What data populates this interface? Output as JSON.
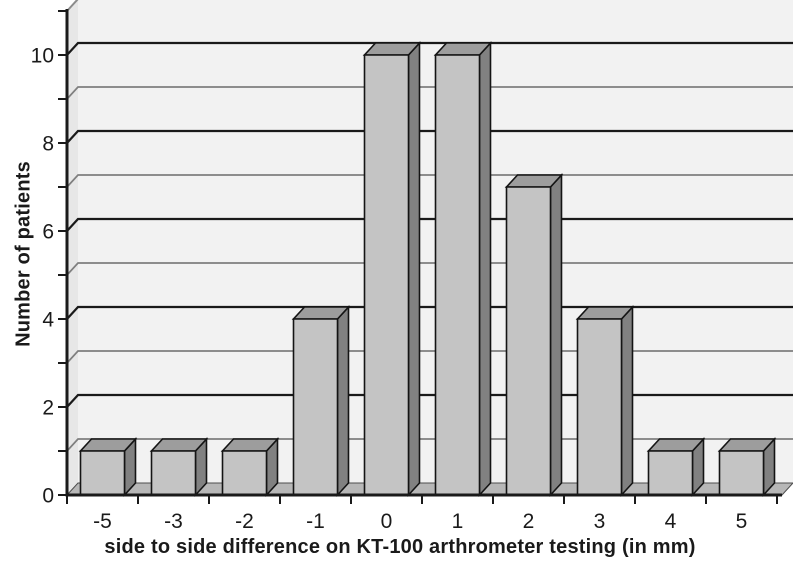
{
  "chart_data": {
    "type": "bar",
    "style": "3d-column-histogram",
    "title": "",
    "xlabel": "side to side difference on KT-100 arthrometer testing (in mm)",
    "ylabel": "Number of patients",
    "categories": [
      "-5",
      "-3",
      "-2",
      "-1",
      "0",
      "1",
      "2",
      "3",
      "4",
      "5"
    ],
    "values": [
      1,
      1,
      1,
      4,
      10,
      10,
      7,
      4,
      1,
      1
    ],
    "ylim": [
      0,
      11
    ],
    "ytick_labels": [
      "0",
      "2",
      "4",
      "6",
      "8",
      "10"
    ],
    "ytick_label_values": [
      0,
      2,
      4,
      6,
      8,
      10
    ],
    "gridline_step": 1,
    "grid": "horizontal",
    "legend": "none",
    "colors": {
      "background": "#ffffff",
      "wall_back": "#f2f2f2",
      "wall_side": "#e7e7e7",
      "wall_edge": "#8c8c8c",
      "floor": "#b7b7b7",
      "floor_edge": "#4d4d4d",
      "bar_front": "#c4c4c4",
      "bar_top": "#9d9d9d",
      "bar_side": "#818181",
      "bar_outline": "#141414",
      "grid_major": "#1a1a1a",
      "grid_minor": "#7f7f7f",
      "axis": "#1a1a1a",
      "text": "#1a1a1a"
    }
  }
}
